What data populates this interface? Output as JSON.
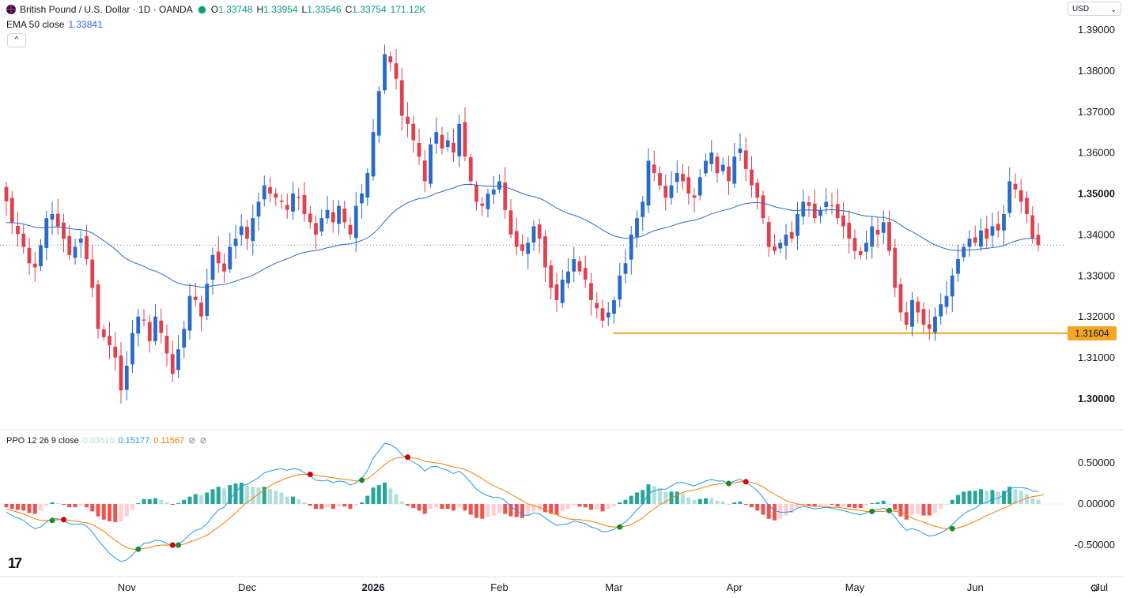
{
  "header": {
    "symbol": "British Pound / U.S. Dollar · 1D · OANDA",
    "ohlc": [
      {
        "label": "O",
        "value": "1.33748"
      },
      {
        "label": "H",
        "value": "1.33954"
      },
      {
        "label": "L",
        "value": "1.33546"
      },
      {
        "label": "C",
        "value": "1.33754"
      }
    ],
    "volume": "171.12K",
    "ema_label": "EMA 50 close",
    "ema_value": "1.33841",
    "collapse_glyph": "^",
    "currency": "USD",
    "currency_chevron": "⌄"
  },
  "ppo_legend": {
    "label": "PPO 12 26 9 close",
    "hist": "0.03610",
    "ppo": "0.15177",
    "signal": "0.11567"
  },
  "support_level": {
    "value": 1.31604,
    "label": "1.31604",
    "color": "#f5a623"
  },
  "colors": {
    "up": "#2a6ac8",
    "down": "#e0414f",
    "ema": "#2a6ac8",
    "ppo": "#2196f3",
    "signal": "#f57c00"
  },
  "icons": [
    "uk-flag-icon",
    "visibility-dot-icon",
    "tradingview-logo-icon",
    "settings-gear-icon"
  ],
  "chart_data": {
    "type": "candlestick",
    "y_ticks": [
      "1.39000",
      "1.38000",
      "1.37000",
      "1.36000",
      "1.35000",
      "1.34000",
      "1.33000",
      "1.32000",
      "1.31000",
      "1.30000"
    ],
    "y_ticks_bold": [
      "1.35000",
      "1.30000"
    ],
    "ylim": [
      1.2955,
      1.3953
    ],
    "x_ticks": [
      {
        "label": "Nov",
        "index": 21
      },
      {
        "label": "Dec",
        "index": 42
      },
      {
        "label": "2026",
        "index": 64,
        "bold": true
      },
      {
        "label": "Feb",
        "index": 86
      },
      {
        "label": "Mar",
        "index": 106
      },
      {
        "label": "Apr",
        "index": 127
      },
      {
        "label": "May",
        "index": 148
      },
      {
        "label": "Jun",
        "index": 169
      },
      {
        "label": "Jul",
        "index": 191
      }
    ],
    "last_price": 1.33754,
    "closes": [
      1.3482,
      1.3431,
      1.3402,
      1.3371,
      1.3331,
      1.3321,
      1.3375,
      1.3441,
      1.3451,
      1.3421,
      1.3391,
      1.3351,
      1.3371,
      1.3391,
      1.3341,
      1.3271,
      1.3171,
      1.3151,
      1.3131,
      1.3101,
      1.3021,
      1.3081,
      1.3161,
      1.3201,
      1.3191,
      1.3141,
      1.3201,
      1.3161,
      1.3111,
      1.3061,
      1.3121,
      1.3171,
      1.3251,
      1.3241,
      1.3201,
      1.3281,
      1.3351,
      1.3331,
      1.3311,
      1.3371,
      1.3391,
      1.3421,
      1.3391,
      1.3441,
      1.3481,
      1.3521,
      1.3501,
      1.3491,
      1.3481,
      1.3461,
      1.3501,
      1.3491,
      1.3451,
      1.3431,
      1.3401,
      1.3441,
      1.3461,
      1.3431,
      1.3471,
      1.3431,
      1.3401,
      1.3471,
      1.3501,
      1.3551,
      1.3651,
      1.3751,
      1.3841,
      1.3821,
      1.3781,
      1.3691,
      1.3671,
      1.3631,
      1.3591,
      1.3531,
      1.3621,
      1.3651,
      1.3611,
      1.3631,
      1.3601,
      1.3671,
      1.3591,
      1.3531,
      1.3481,
      1.3471,
      1.3501,
      1.3511,
      1.3531,
      1.3461,
      1.3401,
      1.3371,
      1.3361,
      1.3381,
      1.3421,
      1.3391,
      1.3321,
      1.3271,
      1.3241,
      1.3291,
      1.3311,
      1.3341,
      1.3311,
      1.3291,
      1.3241,
      1.3221,
      1.3191,
      1.3211,
      1.3241,
      1.3301,
      1.3331,
      1.3401,
      1.3441,
      1.3481,
      1.3581,
      1.3551,
      1.3521,
      1.3491,
      1.3521,
      1.3551,
      1.3531,
      1.3501,
      1.3491,
      1.3541,
      1.3581,
      1.3601,
      1.3551,
      1.3571,
      1.3531,
      1.3591,
      1.3611,
      1.3561,
      1.3521,
      1.3491,
      1.3441,
      1.3371,
      1.3361,
      1.3381,
      1.3401,
      1.3391,
      1.3451,
      1.3481,
      1.3471,
      1.3441,
      1.3461,
      1.3481,
      1.3471,
      1.3441,
      1.3421,
      1.3391,
      1.3361,
      1.3351,
      1.3381,
      1.3421,
      1.3401,
      1.3431,
      1.3361,
      1.3271,
      1.3211,
      1.3181,
      1.3241,
      1.3211,
      1.3181,
      1.3171,
      1.3201,
      1.3231,
      1.3251,
      1.3301,
      1.3341,
      1.3371,
      1.3391,
      1.3381,
      1.3411,
      1.3391,
      1.3421,
      1.3411,
      1.3451,
      1.3531,
      1.3511,
      1.3481,
      1.3451,
      1.3391,
      1.33754
    ],
    "support": 1.31604,
    "ppo_ticks": [
      "0.50000",
      "0.00000",
      "-0.50000"
    ],
    "ppo_ylim": [
      -0.82,
      0.9
    ],
    "ppo_series": [
      {
        "name": "PPO",
        "values": [
          -0.1,
          -0.14,
          -0.17,
          -0.2,
          -0.26,
          -0.3,
          -0.28,
          -0.22,
          -0.18,
          -0.18,
          -0.2,
          -0.24,
          -0.25,
          -0.24,
          -0.27,
          -0.34,
          -0.44,
          -0.52,
          -0.6,
          -0.66,
          -0.7,
          -0.68,
          -0.62,
          -0.54,
          -0.48,
          -0.47,
          -0.44,
          -0.45,
          -0.48,
          -0.51,
          -0.49,
          -0.44,
          -0.37,
          -0.32,
          -0.3,
          -0.24,
          -0.15,
          -0.07,
          -0.04,
          0.06,
          0.14,
          0.22,
          0.24,
          0.28,
          0.32,
          0.38,
          0.4,
          0.42,
          0.43,
          0.41,
          0.43,
          0.42,
          0.38,
          0.34,
          0.29,
          0.28,
          0.29,
          0.26,
          0.28,
          0.27,
          0.23,
          0.26,
          0.31,
          0.41,
          0.56,
          0.65,
          0.74,
          0.72,
          0.68,
          0.6,
          0.55,
          0.51,
          0.47,
          0.4,
          0.45,
          0.46,
          0.43,
          0.41,
          0.37,
          0.4,
          0.34,
          0.26,
          0.18,
          0.13,
          0.1,
          0.08,
          0.08,
          0.04,
          -0.03,
          -0.08,
          -0.13,
          -0.14,
          -0.11,
          -0.12,
          -0.17,
          -0.22,
          -0.26,
          -0.25,
          -0.24,
          -0.21,
          -0.22,
          -0.24,
          -0.28,
          -0.3,
          -0.34,
          -0.33,
          -0.31,
          -0.26,
          -0.22,
          -0.15,
          -0.07,
          0.0,
          0.13,
          0.16,
          0.18,
          0.18,
          0.22,
          0.26,
          0.26,
          0.24,
          0.22,
          0.25,
          0.28,
          0.3,
          0.28,
          0.28,
          0.25,
          0.28,
          0.3,
          0.26,
          0.22,
          0.16,
          0.08,
          -0.02,
          -0.08,
          -0.1,
          -0.1,
          -0.09,
          -0.05,
          -0.03,
          -0.04,
          -0.06,
          -0.05,
          -0.04,
          -0.05,
          -0.07,
          -0.08,
          -0.1,
          -0.12,
          -0.13,
          -0.11,
          -0.08,
          -0.07,
          -0.05,
          -0.08,
          -0.16,
          -0.25,
          -0.32,
          -0.3,
          -0.32,
          -0.36,
          -0.39,
          -0.38,
          -0.35,
          -0.31,
          -0.25,
          -0.18,
          -0.12,
          -0.08,
          -0.05,
          0.0,
          0.02,
          0.06,
          0.07,
          0.11,
          0.19,
          0.2,
          0.2,
          0.19,
          0.16,
          0.15177
        ]
      },
      {
        "name": "Signal",
        "values": [
          -0.06,
          -0.08,
          -0.1,
          -0.12,
          -0.15,
          -0.18,
          -0.2,
          -0.2,
          -0.2,
          -0.19,
          -0.19,
          -0.2,
          -0.21,
          -0.22,
          -0.23,
          -0.25,
          -0.29,
          -0.33,
          -0.39,
          -0.44,
          -0.49,
          -0.53,
          -0.55,
          -0.55,
          -0.54,
          -0.53,
          -0.51,
          -0.5,
          -0.5,
          -0.5,
          -0.5,
          -0.49,
          -0.46,
          -0.44,
          -0.41,
          -0.38,
          -0.33,
          -0.28,
          -0.23,
          -0.17,
          -0.11,
          -0.04,
          0.02,
          0.07,
          0.12,
          0.17,
          0.22,
          0.26,
          0.29,
          0.32,
          0.34,
          0.36,
          0.36,
          0.36,
          0.35,
          0.34,
          0.33,
          0.32,
          0.31,
          0.3,
          0.29,
          0.28,
          0.29,
          0.31,
          0.36,
          0.42,
          0.48,
          0.53,
          0.56,
          0.57,
          0.57,
          0.56,
          0.55,
          0.52,
          0.51,
          0.5,
          0.49,
          0.47,
          0.45,
          0.44,
          0.42,
          0.39,
          0.35,
          0.31,
          0.26,
          0.22,
          0.19,
          0.16,
          0.12,
          0.08,
          0.04,
          0.0,
          -0.02,
          -0.04,
          -0.07,
          -0.1,
          -0.13,
          -0.16,
          -0.18,
          -0.19,
          -0.19,
          -0.2,
          -0.21,
          -0.23,
          -0.25,
          -0.27,
          -0.28,
          -0.28,
          -0.27,
          -0.25,
          -0.21,
          -0.17,
          -0.11,
          -0.06,
          -0.01,
          0.03,
          0.07,
          0.11,
          0.14,
          0.16,
          0.17,
          0.19,
          0.21,
          0.23,
          0.24,
          0.25,
          0.25,
          0.26,
          0.27,
          0.27,
          0.26,
          0.24,
          0.21,
          0.16,
          0.12,
          0.08,
          0.04,
          0.02,
          0.0,
          -0.01,
          -0.02,
          -0.03,
          -0.03,
          -0.03,
          -0.04,
          -0.04,
          -0.05,
          -0.06,
          -0.07,
          -0.08,
          -0.09,
          -0.09,
          -0.09,
          -0.09,
          -0.08,
          -0.09,
          -0.1,
          -0.13,
          -0.17,
          -0.2,
          -0.22,
          -0.25,
          -0.27,
          -0.29,
          -0.3,
          -0.3,
          -0.29,
          -0.27,
          -0.24,
          -0.21,
          -0.18,
          -0.14,
          -0.11,
          -0.08,
          -0.05,
          -0.02,
          0.02,
          0.04,
          0.07,
          0.09,
          0.1,
          0.11567
        ]
      }
    ]
  }
}
